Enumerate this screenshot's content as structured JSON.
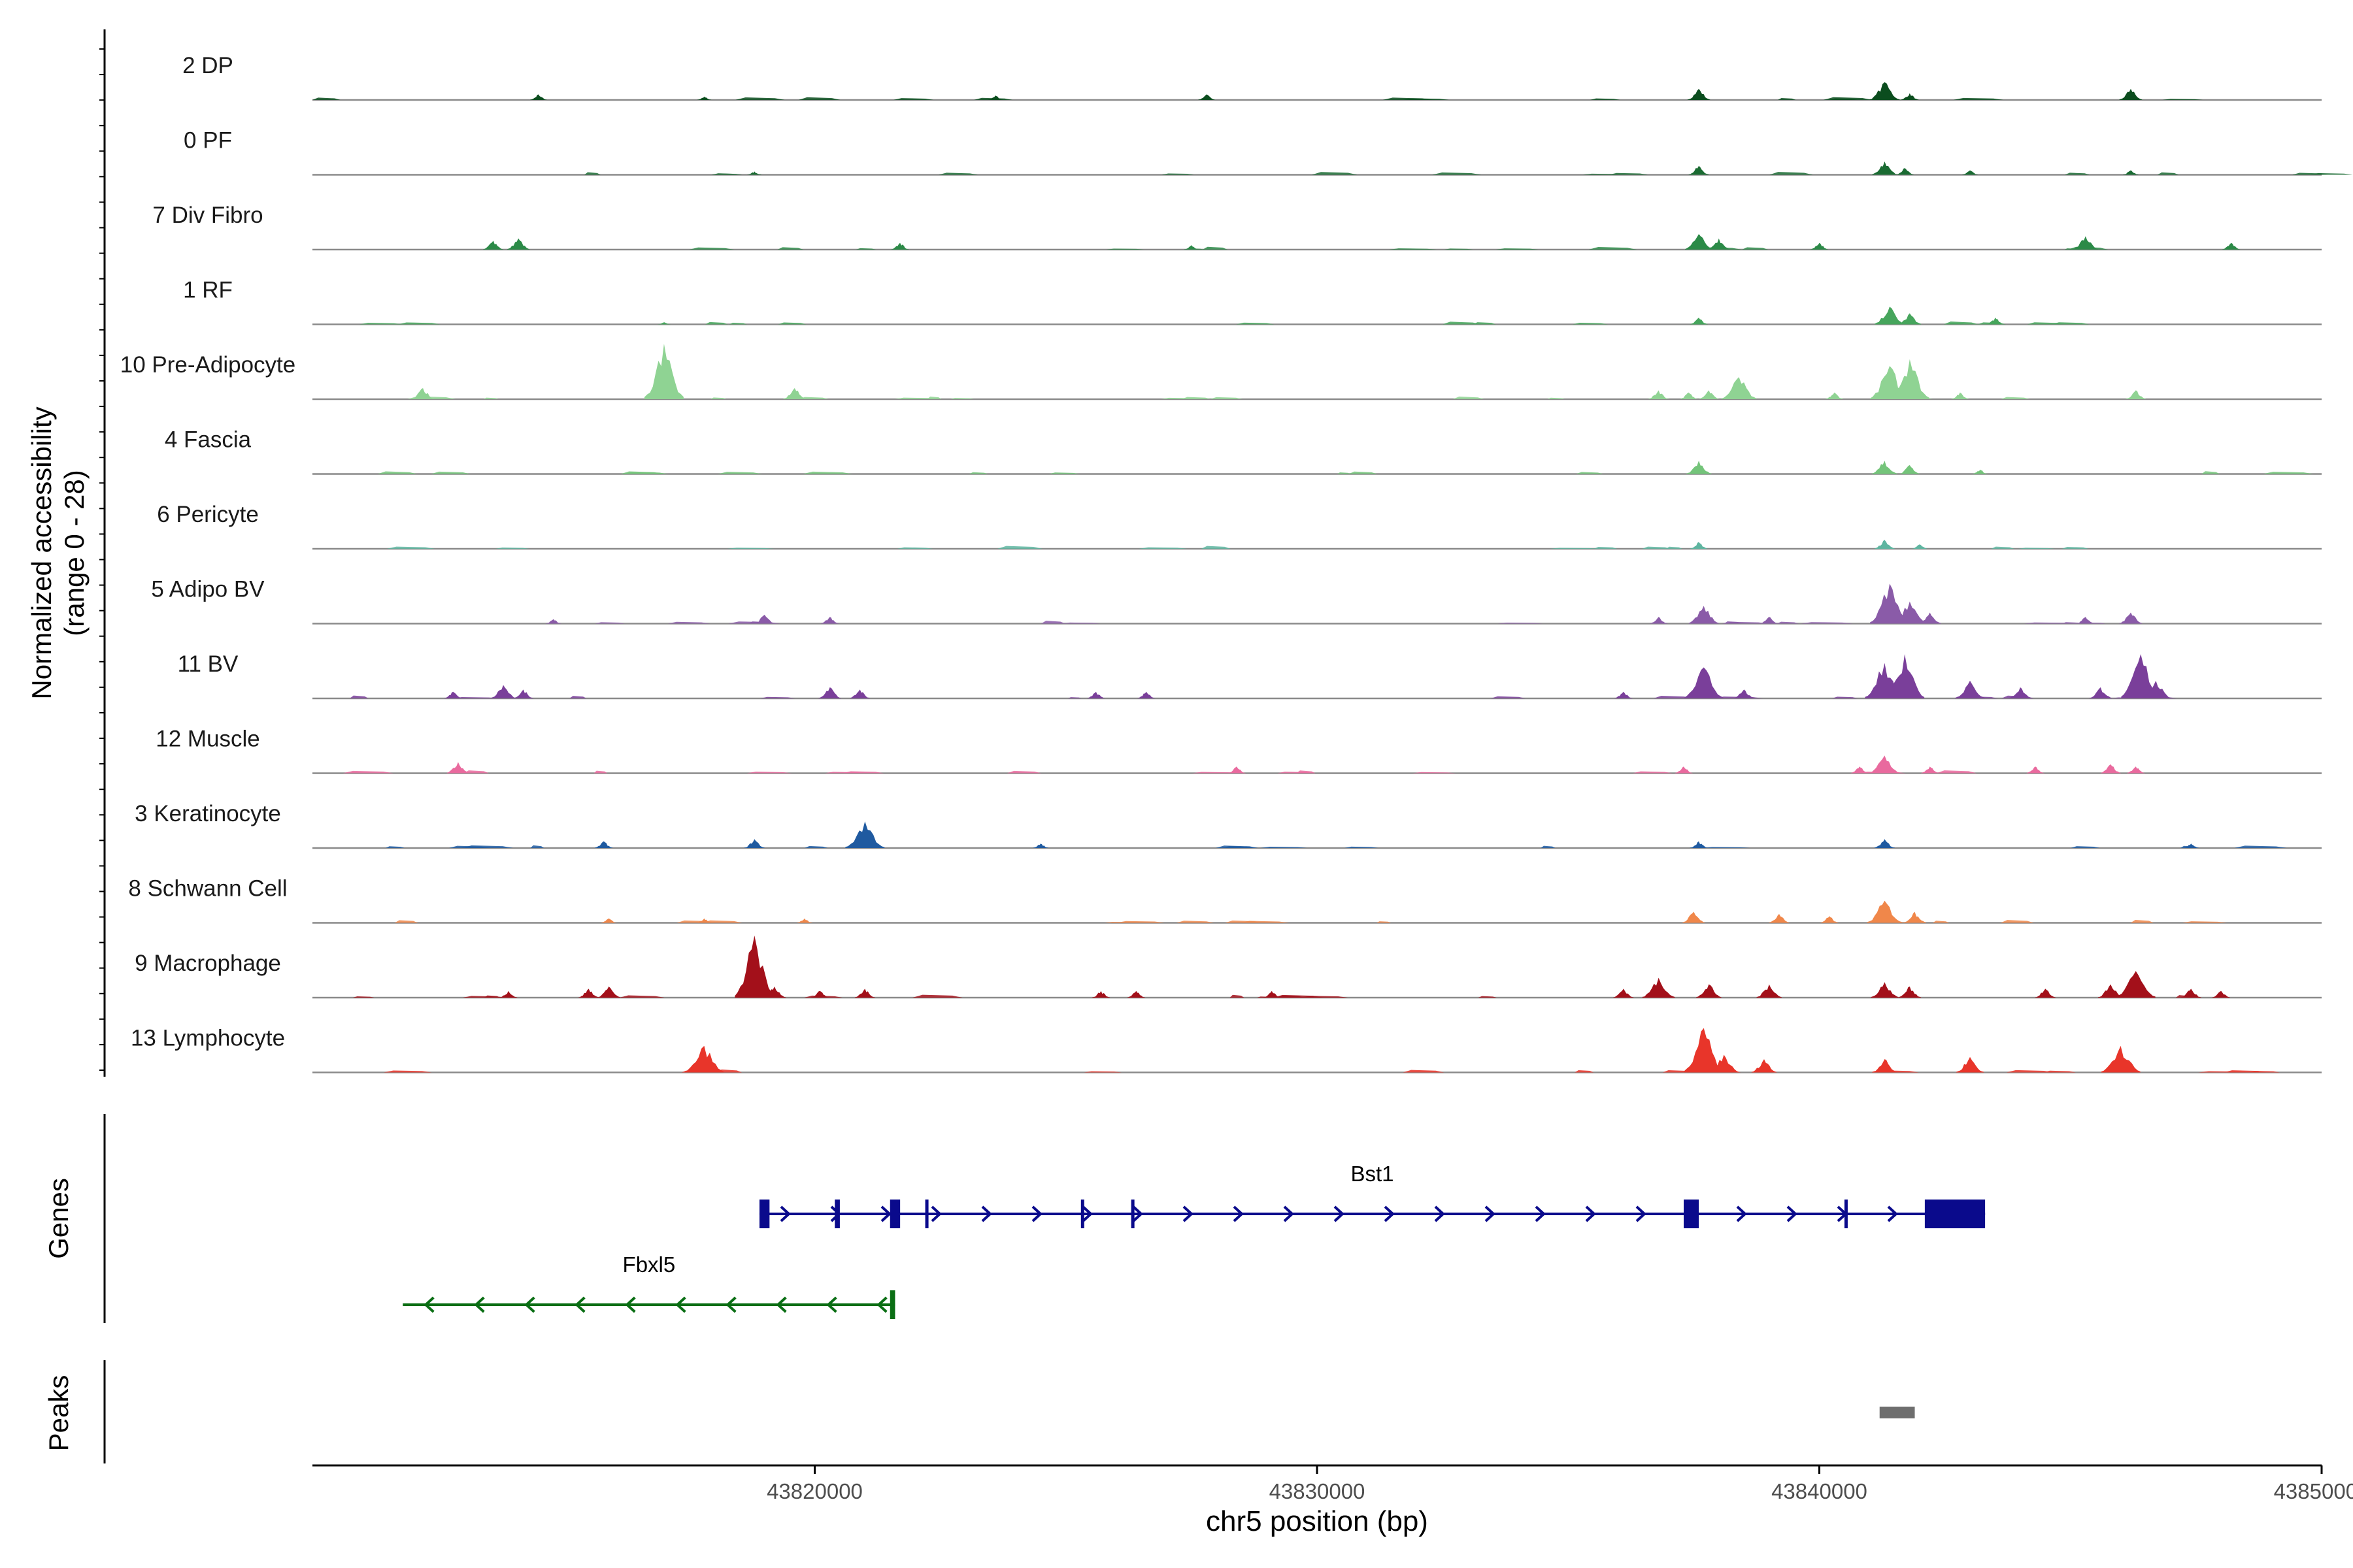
{
  "chart_data": {
    "type": "genome-coverage",
    "chromosome": "chr5",
    "xlabel": "chr5 position (bp)",
    "xlim": [
      43810000,
      43850000
    ],
    "xticks": [
      43820000,
      43830000,
      43840000,
      43850000
    ],
    "xtick_labels": [
      "43820000",
      "43830000",
      "43840000",
      "43850000"
    ],
    "ylabel_line1": "Normalized accessibility",
    "ylabel_line2": "(range 0 - 28)",
    "yrange": [
      0,
      28
    ],
    "tracks": [
      {
        "name": "2 DP",
        "color": "#0b4d1e",
        "peaks": [
          [
            43814500,
            2.5
          ],
          [
            43817800,
            1.5
          ],
          [
            43823600,
            2
          ],
          [
            43827800,
            2.5
          ],
          [
            43837600,
            5
          ],
          [
            43841300,
            8
          ],
          [
            43841800,
            3
          ],
          [
            43846200,
            5
          ]
        ]
      },
      {
        "name": "0 PF",
        "color": "#1a6b32",
        "peaks": [
          [
            43818800,
            1.5
          ],
          [
            43837600,
            4
          ],
          [
            43841300,
            6
          ],
          [
            43841700,
            3
          ],
          [
            43843000,
            2
          ],
          [
            43846200,
            2
          ]
        ]
      },
      {
        "name": "7 Div Fibro",
        "color": "#2b8a47",
        "peaks": [
          [
            43813600,
            4
          ],
          [
            43814100,
            5
          ],
          [
            43821700,
            3
          ],
          [
            43827500,
            2
          ],
          [
            43837600,
            7
          ],
          [
            43838000,
            5
          ],
          [
            43840000,
            3
          ],
          [
            43845300,
            6
          ],
          [
            43848200,
            3
          ]
        ]
      },
      {
        "name": "1 RF",
        "color": "#46a55c",
        "peaks": [
          [
            43817000,
            1
          ],
          [
            43837600,
            3
          ],
          [
            43841400,
            8
          ],
          [
            43841800,
            5
          ],
          [
            43843500,
            3
          ]
        ]
      },
      {
        "name": "10 Pre-Adipocyte",
        "color": "#8fd393",
        "peaks": [
          [
            43812200,
            5
          ],
          [
            43817000,
            25
          ],
          [
            43819600,
            5
          ],
          [
            43836800,
            4
          ],
          [
            43837400,
            3
          ],
          [
            43837800,
            4
          ],
          [
            43838400,
            10
          ],
          [
            43840300,
            3
          ],
          [
            43841400,
            15
          ],
          [
            43841800,
            18
          ],
          [
            43842800,
            3
          ],
          [
            43846300,
            4
          ]
        ]
      },
      {
        "name": "4 Fascia",
        "color": "#74c47a",
        "peaks": [
          [
            43837600,
            6
          ],
          [
            43841300,
            6
          ],
          [
            43841800,
            4
          ],
          [
            43843200,
            2
          ]
        ]
      },
      {
        "name": "6 Pericyte",
        "color": "#5eb5a0",
        "peaks": [
          [
            43837600,
            3
          ],
          [
            43841300,
            4
          ],
          [
            43842000,
            2
          ]
        ]
      },
      {
        "name": "5 Adipo BV",
        "color": "#8a5ba8",
        "peaks": [
          [
            43814800,
            2
          ],
          [
            43819000,
            4
          ],
          [
            43820300,
            3
          ],
          [
            43836800,
            3
          ],
          [
            43837700,
            8
          ],
          [
            43839000,
            3
          ],
          [
            43841400,
            18
          ],
          [
            43841800,
            10
          ],
          [
            43842200,
            5
          ],
          [
            43845300,
            3
          ],
          [
            43846200,
            5
          ]
        ]
      },
      {
        "name": "11 BV",
        "color": "#7a3f9a",
        "peaks": [
          [
            43812800,
            3
          ],
          [
            43813800,
            6
          ],
          [
            43814200,
            4
          ],
          [
            43820300,
            5
          ],
          [
            43820900,
            4
          ],
          [
            43825600,
            3
          ],
          [
            43826600,
            3
          ],
          [
            43836100,
            3
          ],
          [
            43837700,
            14
          ],
          [
            43838500,
            4
          ],
          [
            43841300,
            16
          ],
          [
            43841700,
            20
          ],
          [
            43843000,
            8
          ],
          [
            43844000,
            5
          ],
          [
            43845600,
            5
          ],
          [
            43846400,
            20
          ],
          [
            43846700,
            8
          ]
        ]
      },
      {
        "name": "12 Muscle",
        "color": "#e96a9e",
        "peaks": [
          [
            43812900,
            5
          ],
          [
            43828400,
            3
          ],
          [
            43837300,
            3
          ],
          [
            43840800,
            3
          ],
          [
            43841300,
            8
          ],
          [
            43842200,
            3
          ],
          [
            43844300,
            3
          ],
          [
            43845800,
            4
          ],
          [
            43846300,
            3
          ]
        ]
      },
      {
        "name": "3 Keratinocyte",
        "color": "#1f5aa0",
        "peaks": [
          [
            43815800,
            3
          ],
          [
            43818800,
            4
          ],
          [
            43821000,
            12
          ],
          [
            43824500,
            2
          ],
          [
            43837600,
            3
          ],
          [
            43841300,
            4
          ],
          [
            43847400,
            2
          ]
        ]
      },
      {
        "name": "8 Schwann Cell",
        "color": "#f0874a",
        "peaks": [
          [
            43815900,
            2
          ],
          [
            43817800,
            2
          ],
          [
            43819800,
            2
          ],
          [
            43837500,
            5
          ],
          [
            43839200,
            4
          ],
          [
            43840200,
            3
          ],
          [
            43841300,
            10
          ],
          [
            43841900,
            5
          ]
        ]
      },
      {
        "name": "9 Macrophage",
        "color": "#a3101a",
        "peaks": [
          [
            43813900,
            3
          ],
          [
            43815500,
            4
          ],
          [
            43815900,
            5
          ],
          [
            43818800,
            28
          ],
          [
            43819200,
            5
          ],
          [
            43820100,
            3
          ],
          [
            43821000,
            4
          ],
          [
            43825700,
            3
          ],
          [
            43826400,
            3
          ],
          [
            43829100,
            3
          ],
          [
            43836100,
            4
          ],
          [
            43836800,
            9
          ],
          [
            43837800,
            6
          ],
          [
            43839000,
            6
          ],
          [
            43841300,
            7
          ],
          [
            43841800,
            5
          ],
          [
            43844500,
            4
          ],
          [
            43845800,
            6
          ],
          [
            43846300,
            12
          ],
          [
            43847400,
            4
          ],
          [
            43848000,
            3
          ]
        ]
      },
      {
        "name": "13 Lymphocyte",
        "color": "#e8352a",
        "peaks": [
          [
            43817800,
            12
          ],
          [
            43837700,
            20
          ],
          [
            43838100,
            8
          ],
          [
            43838900,
            6
          ],
          [
            43841300,
            6
          ],
          [
            43843000,
            7
          ],
          [
            43846000,
            12
          ]
        ]
      }
    ],
    "genes_label": "Genes",
    "genes": [
      {
        "name": "Bst1",
        "strand": "+",
        "color": "#0a0a8c",
        "start": 43818900,
        "end": 43843300,
        "exons": [
          [
            43818900,
            43819100
          ],
          [
            43820400,
            43820500
          ],
          [
            43821500,
            43821700
          ],
          [
            43822200,
            43822260
          ],
          [
            43825300,
            43825360
          ],
          [
            43826300,
            43826360
          ],
          [
            43837300,
            43837600
          ],
          [
            43840500,
            43840560
          ],
          [
            43842100,
            43843300
          ]
        ]
      },
      {
        "name": "Fbxl5",
        "strand": "-",
        "color": "#0a6e14",
        "start": 43811800,
        "end": 43821600,
        "exons": [
          [
            43821500,
            43821600
          ]
        ]
      }
    ],
    "peaks_label": "Peaks",
    "peak_regions": [
      [
        43841200,
        43841900
      ]
    ]
  }
}
